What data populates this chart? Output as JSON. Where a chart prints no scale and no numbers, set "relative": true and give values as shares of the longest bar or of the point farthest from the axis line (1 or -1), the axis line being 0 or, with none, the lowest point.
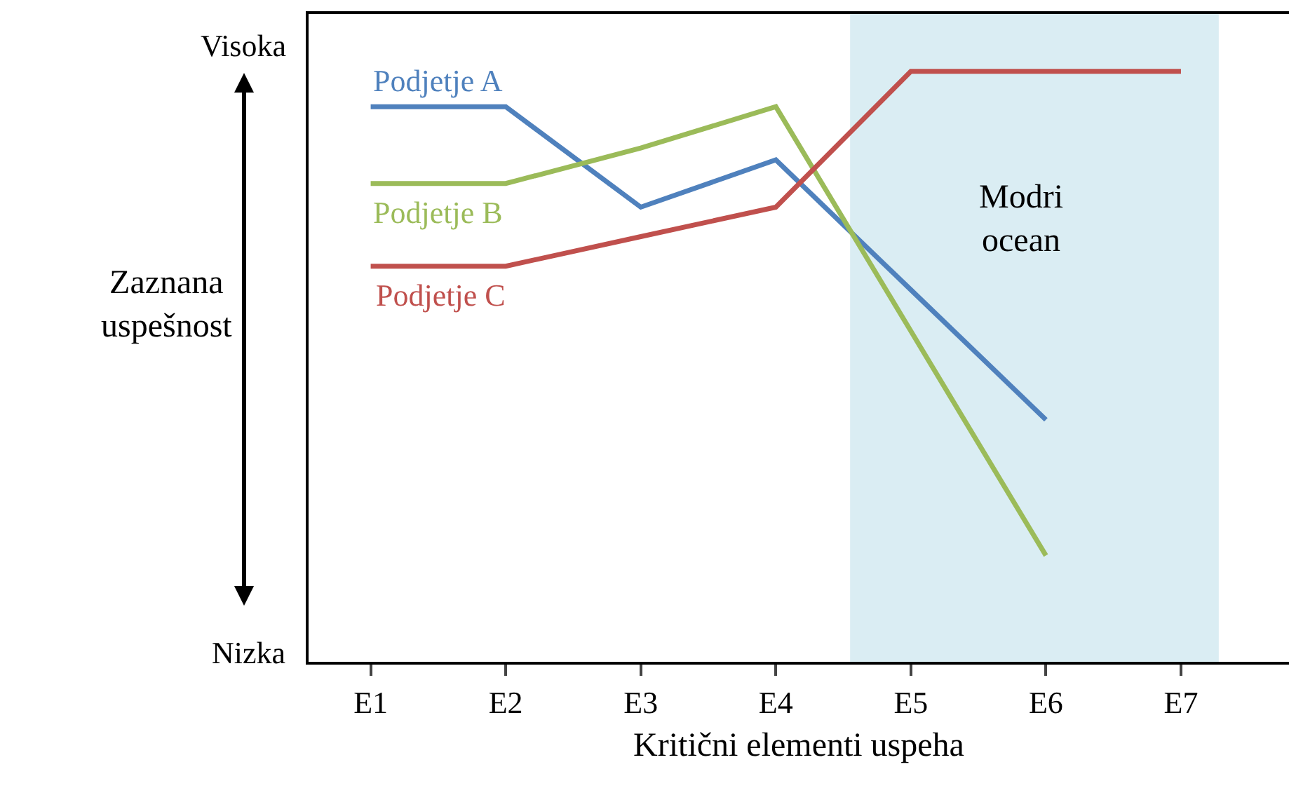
{
  "chart_data": {
    "type": "line",
    "relative": true,
    "xlabel": "Kritični elementi uspeha",
    "ylabel": "Zaznana uspešnost",
    "categories": [
      "E1",
      "E2",
      "E3",
      "E4",
      "E5",
      "E6",
      "E7"
    ],
    "series": [
      {
        "name": "Podjetje A",
        "color": "#4f81bd",
        "values": [
          0.94,
          0.94,
          0.77,
          0.85,
          0.63,
          0.41,
          null
        ]
      },
      {
        "name": "Podjetje B",
        "color": "#9bbb59",
        "values": [
          0.81,
          0.81,
          0.87,
          0.94,
          0.56,
          0.18,
          null
        ]
      },
      {
        "name": "Podjetje C",
        "color": "#c0504d",
        "values": [
          0.67,
          0.67,
          0.72,
          0.77,
          1,
          1,
          1
        ]
      }
    ],
    "bands": [
      {
        "axis": "x",
        "from": "E5",
        "to": "E7",
        "label": "Modri ocean",
        "color": "#daedf3"
      }
    ],
    "annotations": [
      "Visoka",
      "Nizka"
    ],
    "legend": false,
    "grid": false,
    "marker": "none",
    "line_style": "solid"
  }
}
